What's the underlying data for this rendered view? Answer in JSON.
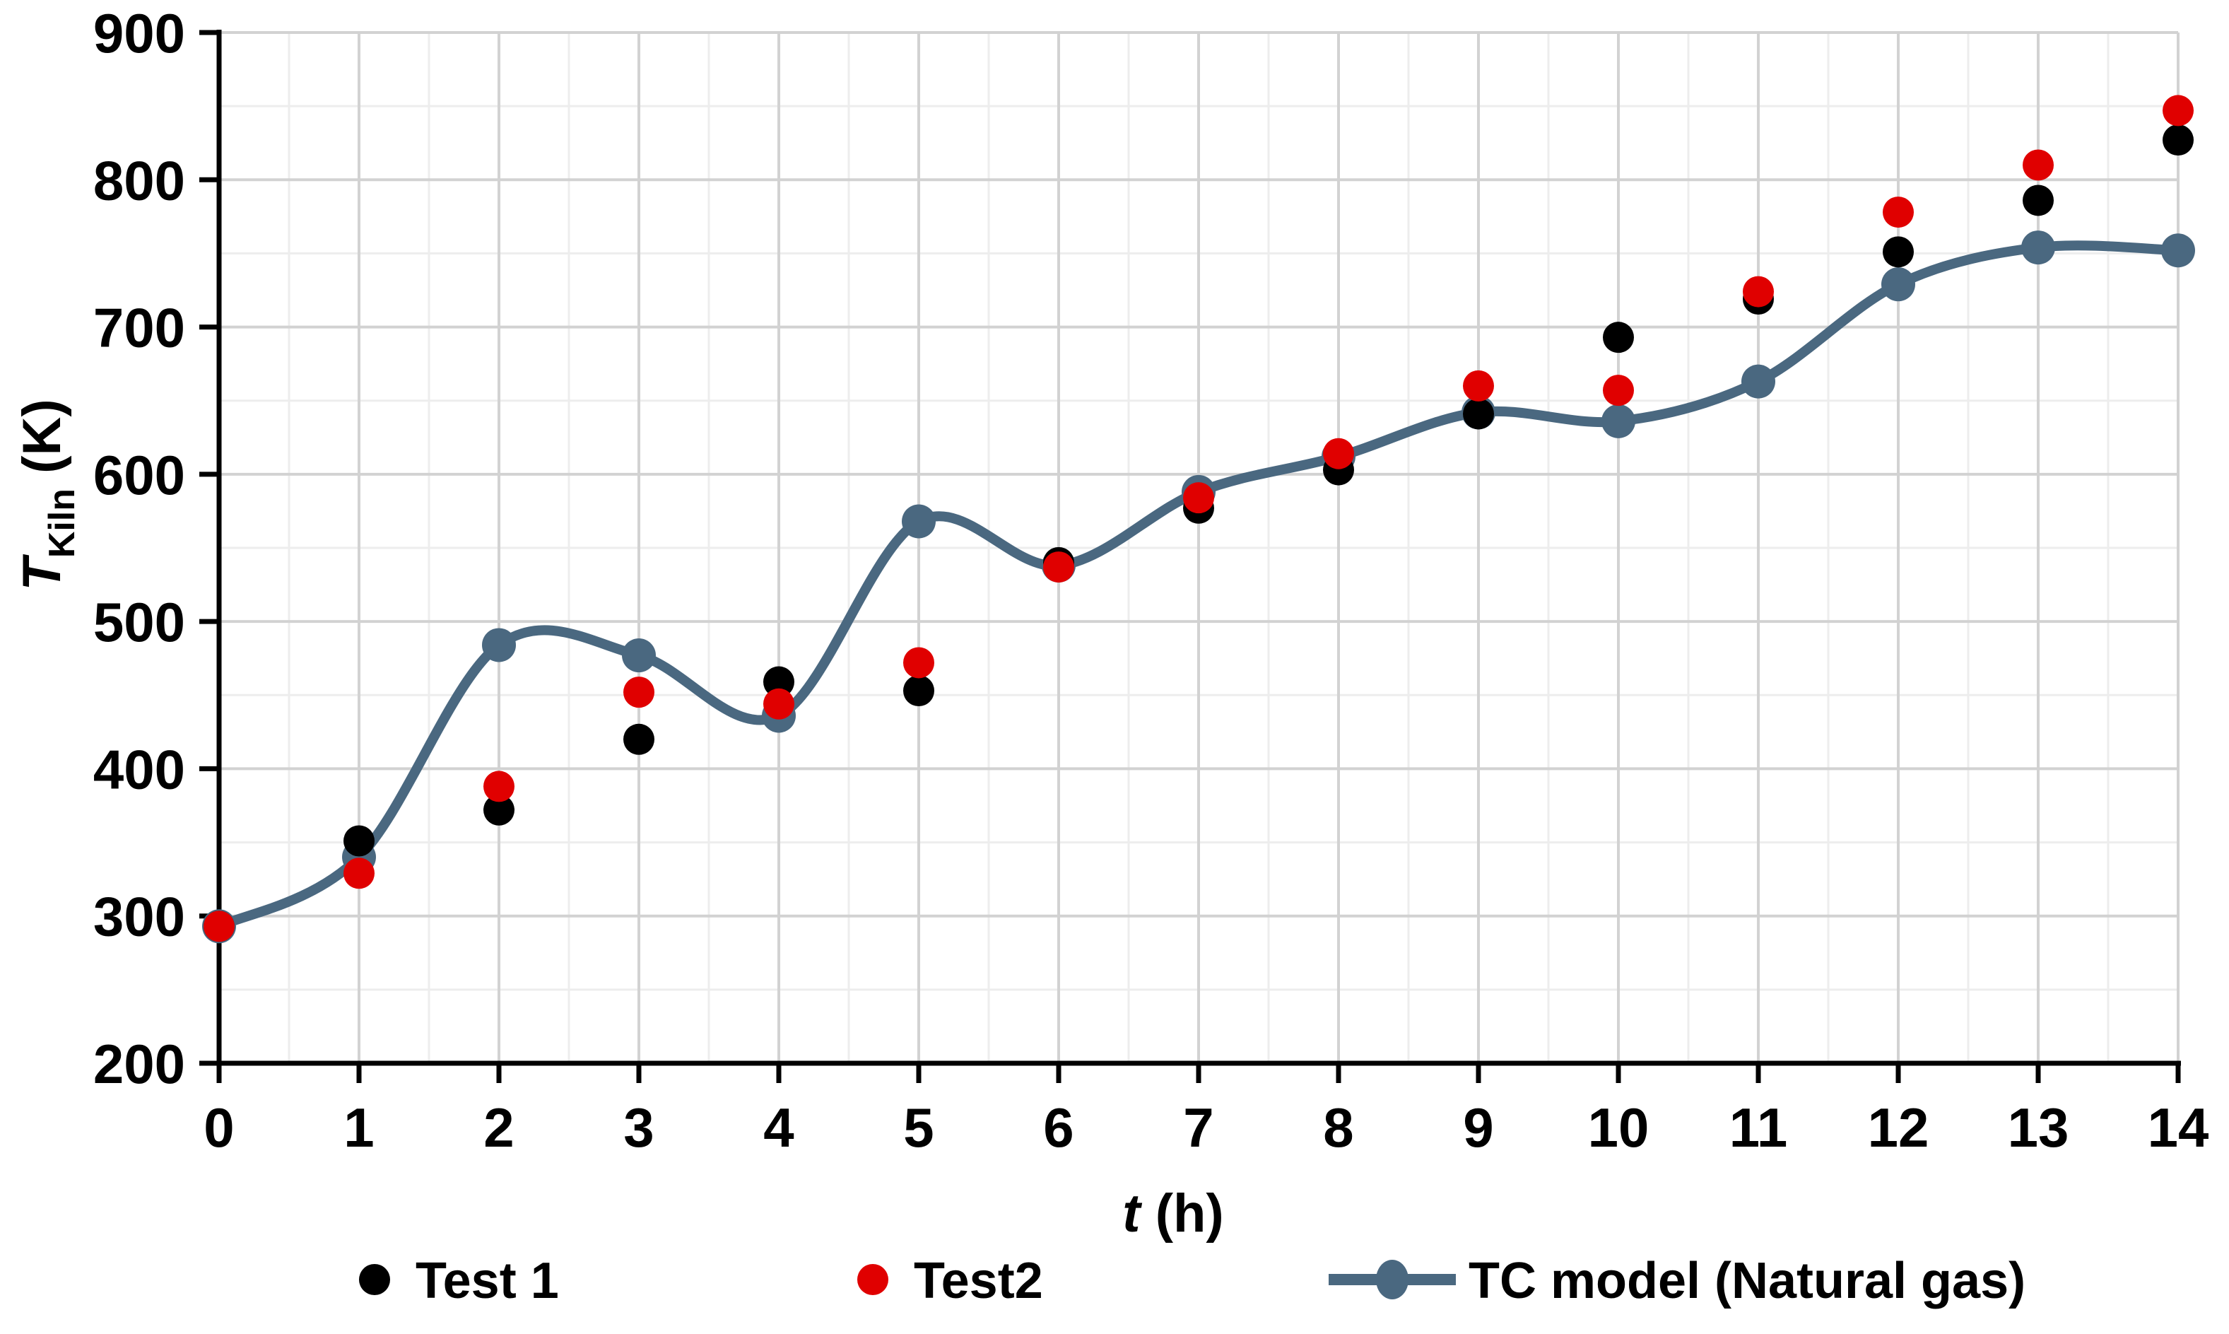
{
  "page": {
    "background": "#ffffff"
  },
  "chart_data": {
    "type": "scatter",
    "title": "",
    "x": [
      0,
      1,
      2,
      3,
      4,
      5,
      6,
      7,
      8,
      9,
      10,
      11,
      12,
      13,
      14
    ],
    "series": [
      {
        "name": "Test 1",
        "type": "scatter",
        "marker": "circle",
        "color": "#000000",
        "values": [
          293,
          351,
          372,
          420,
          459,
          453,
          540,
          577,
          603,
          641,
          693,
          719,
          751,
          786,
          827
        ]
      },
      {
        "name": "Test2",
        "type": "scatter",
        "marker": "circle",
        "color": "#e00000",
        "values": [
          293,
          329,
          388,
          452,
          444,
          472,
          537,
          584,
          614,
          660,
          657,
          724,
          778,
          810,
          847
        ]
      },
      {
        "name": "TC model (Natural gas)",
        "type": "smooth_line_with_markers",
        "color": "#4a6880",
        "values": [
          293,
          340,
          484,
          477,
          436,
          568,
          538,
          588,
          612,
          642,
          636,
          663,
          729,
          754,
          752
        ]
      }
    ],
    "xlabel": "t (h)",
    "ylabel": "T_Kiln (K)",
    "xlabel_parts": {
      "symbol": "t",
      "rest": " (h)"
    },
    "ylabel_parts": {
      "symbol": "T",
      "subscript": "Kiln",
      "rest": " (K)"
    },
    "xlim": [
      0,
      14
    ],
    "ylim": [
      200,
      900
    ],
    "x_ticks": [
      0,
      1,
      2,
      3,
      4,
      5,
      6,
      7,
      8,
      9,
      10,
      11,
      12,
      13,
      14
    ],
    "y_ticks": [
      200,
      300,
      400,
      500,
      600,
      700,
      800,
      900
    ],
    "x_minor_step": 0.5,
    "y_minor_step": 50,
    "grid": {
      "on": true,
      "major_color": "#d2d2d2",
      "minor_color": "#ededed"
    },
    "axis_color": "#000000",
    "legend": {
      "position": "bottom",
      "entries": [
        "Test 1",
        "Test2",
        "TC model (Natural gas)"
      ]
    }
  },
  "style": {
    "dot_radius": 22,
    "line_marker_radius": 24,
    "line_width": 14,
    "tick_font_size": 78,
    "title_font_size": 76,
    "subscript_font_size": 52,
    "legend_font_size": 72
  }
}
